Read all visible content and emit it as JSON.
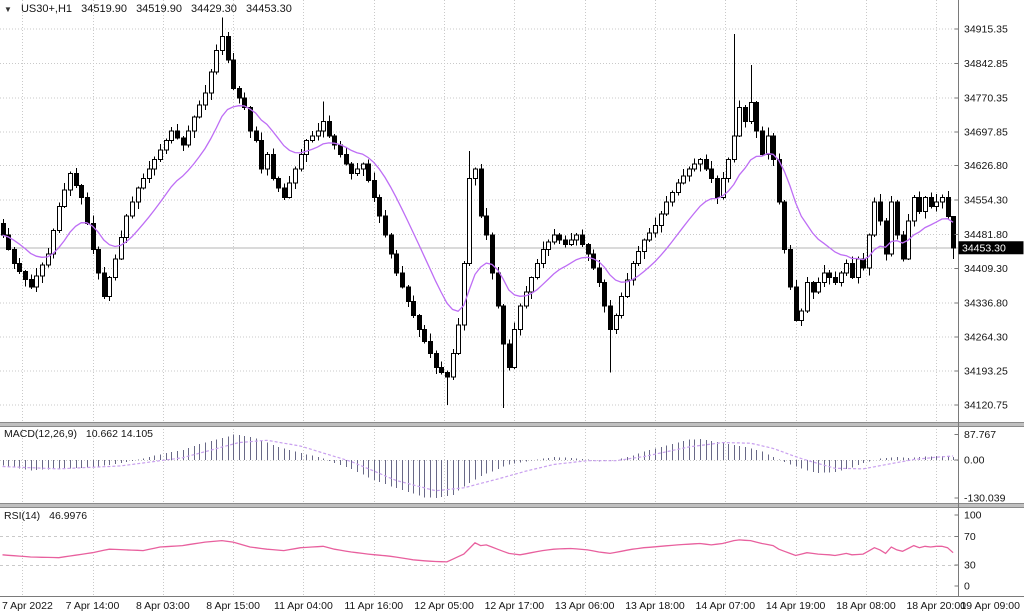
{
  "header": {
    "dropdown_icon": "▼",
    "symbol": "US30+,H1",
    "open": "34519.90",
    "high": "34519.90",
    "low": "34429.30",
    "close": "34453.30"
  },
  "price_axis": {
    "ticks": [
      "34915.35",
      "34842.85",
      "34770.35",
      "34697.85",
      "34626.80",
      "34554.30",
      "34481.80",
      "34409.30",
      "34336.80",
      "34264.30",
      "34193.25",
      "34120.75"
    ],
    "current": "34453.30"
  },
  "time_axis": {
    "labels": [
      "7 Apr 2022",
      "7 Apr 14:00",
      "8 Apr 03:00",
      "8 Apr 15:00",
      "11 Apr 04:00",
      "11 Apr 16:00",
      "12 Apr 05:00",
      "12 Apr 17:00",
      "13 Apr 06:00",
      "13 Apr 18:00",
      "14 Apr 07:00",
      "14 Apr 19:00",
      "18 Apr 08:00",
      "18 Apr 20:00",
      "19 Apr 09:00"
    ]
  },
  "macd_panel": {
    "label": "MACD(12,26,9)",
    "values": "10.662 14.105",
    "ticks": [
      "87.767",
      "0.00",
      "-130.039"
    ]
  },
  "rsi_panel": {
    "label": "RSI(14)",
    "value": "46.9976",
    "ticks": [
      "100",
      "70",
      "30",
      "0"
    ]
  },
  "colors": {
    "background": "#ffffff",
    "grid": "#c9c9c9",
    "axis_line": "#7a7a7a",
    "axis_text": "#141414",
    "candle_border": "#000000",
    "candle_up_fill": "#ffffff",
    "candle_down_fill": "#000000",
    "ma_line": "#be6ef5",
    "macd_histogram": "#696987",
    "macd_signal": "#c9a0ef",
    "rsi_line": "#e8609e",
    "current_price_line": "#b4b4b4",
    "current_price_bg": "#000000",
    "current_price_text": "#ffffff",
    "separator_fill": "#c0c0c0",
    "separator_edge": "#8a8a8a"
  },
  "chart_data": [
    {
      "type": "candlestick",
      "symbol": "US30+",
      "timeframe": "H1",
      "last_ohlc": {
        "open": 34519.9,
        "high": 34519.9,
        "low": 34429.3,
        "close": 34453.3
      },
      "current_price": 34453.3,
      "y_ticks": [
        34915.35,
        34842.85,
        34770.35,
        34697.85,
        34626.8,
        34554.3,
        34481.8,
        34409.3,
        34336.8,
        34264.3,
        34193.25,
        34120.75
      ],
      "ylim": [
        34085,
        34977
      ],
      "num_candles": 170,
      "grid": true,
      "x_tick_indices": [
        3.5,
        16,
        28.5,
        41,
        53.5,
        66,
        78.5,
        91,
        103.5,
        116,
        128.5,
        141,
        153.5,
        166,
        178.5
      ],
      "close_anchors": [
        [
          0,
          34480
        ],
        [
          2,
          34420
        ],
        [
          5,
          34370
        ],
        [
          8,
          34440
        ],
        [
          10,
          34540
        ],
        [
          12,
          34610
        ],
        [
          14,
          34560
        ],
        [
          16,
          34450
        ],
        [
          18,
          34350
        ],
        [
          20,
          34430
        ],
        [
          22,
          34520
        ],
        [
          24,
          34580
        ],
        [
          26,
          34620
        ],
        [
          28,
          34660
        ],
        [
          30,
          34700
        ],
        [
          32,
          34670
        ],
        [
          34,
          34730
        ],
        [
          36,
          34780
        ],
        [
          38,
          34870
        ],
        [
          39,
          34900
        ],
        [
          40,
          34850
        ],
        [
          41,
          34790
        ],
        [
          43,
          34750
        ],
        [
          44,
          34700
        ],
        [
          45,
          34680
        ],
        [
          46,
          34620
        ],
        [
          47,
          34650
        ],
        [
          48,
          34600
        ],
        [
          50,
          34560
        ],
        [
          52,
          34620
        ],
        [
          54,
          34680
        ],
        [
          56,
          34700
        ],
        [
          57,
          34720
        ],
        [
          58,
          34690
        ],
        [
          60,
          34650
        ],
        [
          62,
          34610
        ],
        [
          64,
          34630
        ],
        [
          66,
          34560
        ],
        [
          68,
          34480
        ],
        [
          70,
          34400
        ],
        [
          72,
          34340
        ],
        [
          74,
          34280
        ],
        [
          76,
          34230
        ],
        [
          77,
          34200
        ],
        [
          79,
          34180
        ],
        [
          80,
          34230
        ],
        [
          81,
          34290
        ],
        [
          82,
          34420
        ],
        [
          83,
          34600
        ],
        [
          84,
          34620
        ],
        [
          85,
          34520
        ],
        [
          86,
          34480
        ],
        [
          87,
          34400
        ],
        [
          88,
          34330
        ],
        [
          89,
          34250
        ],
        [
          90,
          34200
        ],
        [
          91,
          34280
        ],
        [
          92,
          34330
        ],
        [
          94,
          34390
        ],
        [
          96,
          34450
        ],
        [
          98,
          34480
        ],
        [
          100,
          34460
        ],
        [
          102,
          34480
        ],
        [
          104,
          34440
        ],
        [
          106,
          34380
        ],
        [
          107,
          34330
        ],
        [
          108,
          34280
        ],
        [
          109,
          34310
        ],
        [
          110,
          34350
        ],
        [
          112,
          34420
        ],
        [
          114,
          34470
        ],
        [
          116,
          34500
        ],
        [
          118,
          34550
        ],
        [
          120,
          34590
        ],
        [
          122,
          34620
        ],
        [
          124,
          34640
        ],
        [
          126,
          34600
        ],
        [
          127,
          34560
        ],
        [
          128,
          34600
        ],
        [
          129,
          34640
        ],
        [
          130,
          34690
        ],
        [
          131,
          34750
        ],
        [
          132,
          34720
        ],
        [
          133,
          34760
        ],
        [
          134,
          34700
        ],
        [
          135,
          34650
        ],
        [
          136,
          34690
        ],
        [
          137,
          34640
        ],
        [
          138,
          34550
        ],
        [
          139,
          34450
        ],
        [
          140,
          34370
        ],
        [
          141,
          34300
        ],
        [
          142,
          34320
        ],
        [
          143,
          34380
        ],
        [
          144,
          34360
        ],
        [
          146,
          34400
        ],
        [
          148,
          34380
        ],
        [
          150,
          34420
        ],
        [
          151,
          34390
        ],
        [
          152,
          34430
        ],
        [
          153,
          34410
        ],
        [
          154,
          34480
        ],
        [
          155,
          34550
        ],
        [
          156,
          34510
        ],
        [
          157,
          34440
        ],
        [
          158,
          34550
        ],
        [
          159,
          34480
        ],
        [
          160,
          34430
        ],
        [
          161,
          34510
        ],
        [
          162,
          34560
        ],
        [
          163,
          34530
        ],
        [
          164,
          34560
        ],
        [
          165,
          34540
        ],
        [
          166,
          34550
        ],
        [
          167,
          34560
        ],
        [
          168,
          34519.9
        ],
        [
          169,
          34453.3
        ]
      ],
      "wick_overrides": [
        {
          "i": 39,
          "high": 34940
        },
        {
          "i": 57,
          "high": 34762
        },
        {
          "i": 79,
          "low": 34121
        },
        {
          "i": 83,
          "high": 34658
        },
        {
          "i": 89,
          "low": 34115
        },
        {
          "i": 108,
          "low": 34190
        },
        {
          "i": 130,
          "high": 34905
        },
        {
          "i": 133,
          "high": 34840
        },
        {
          "i": 169,
          "high": 34519.9,
          "low": 34429.3
        }
      ],
      "overlays": [
        {
          "name": "MA",
          "type": "ema",
          "period": 15,
          "color": "#be6ef5"
        }
      ]
    },
    {
      "type": "macd",
      "label": "MACD(12,26,9)",
      "macd_value": 10.662,
      "signal_value": 14.105,
      "y_ticks": [
        87.767,
        0,
        -130.039
      ],
      "ylim": [
        -147,
        110
      ],
      "hist_anchors": [
        [
          0,
          -18
        ],
        [
          5,
          -35
        ],
        [
          10,
          -30
        ],
        [
          16,
          -25
        ],
        [
          21,
          -10
        ],
        [
          25,
          5
        ],
        [
          28,
          20
        ],
        [
          32,
          35
        ],
        [
          35,
          55
        ],
        [
          39,
          75
        ],
        [
          41,
          88
        ],
        [
          44,
          80
        ],
        [
          47,
          60
        ],
        [
          49,
          45
        ],
        [
          53,
          25
        ],
        [
          57,
          5
        ],
        [
          59,
          -10
        ],
        [
          62,
          -30
        ],
        [
          65,
          -60
        ],
        [
          69,
          -90
        ],
        [
          73,
          -115
        ],
        [
          75,
          -128
        ],
        [
          77,
          -130
        ],
        [
          80,
          -120
        ],
        [
          82,
          -90
        ],
        [
          85,
          -55
        ],
        [
          88,
          -30
        ],
        [
          90,
          -15
        ],
        [
          93,
          -5
        ],
        [
          96,
          5
        ],
        [
          98,
          10
        ],
        [
          101,
          8
        ],
        [
          104,
          2
        ],
        [
          106,
          -5
        ],
        [
          109,
          0
        ],
        [
          112,
          15
        ],
        [
          114,
          30
        ],
        [
          117,
          45
        ],
        [
          120,
          60
        ],
        [
          122,
          70
        ],
        [
          124,
          72
        ],
        [
          126,
          65
        ],
        [
          128,
          60
        ],
        [
          129,
          55
        ],
        [
          132,
          45
        ],
        [
          135,
          30
        ],
        [
          137,
          10
        ],
        [
          140,
          -15
        ],
        [
          143,
          -35
        ],
        [
          145,
          -45
        ],
        [
          148,
          -40
        ],
        [
          151,
          -25
        ],
        [
          153,
          -10
        ],
        [
          156,
          5
        ],
        [
          159,
          10
        ],
        [
          161,
          8
        ],
        [
          164,
          12
        ],
        [
          167,
          14
        ],
        [
          169,
          10.662
        ]
      ],
      "signal_anchors": [
        [
          0,
          -22
        ],
        [
          10,
          -30
        ],
        [
          21,
          -20
        ],
        [
          32,
          8
        ],
        [
          42,
          60
        ],
        [
          47,
          68
        ],
        [
          53,
          48
        ],
        [
          62,
          -5
        ],
        [
          70,
          -70
        ],
        [
          77,
          -105
        ],
        [
          82,
          -95
        ],
        [
          88,
          -65
        ],
        [
          93,
          -38
        ],
        [
          98,
          -15
        ],
        [
          104,
          -2
        ],
        [
          109,
          -2
        ],
        [
          114,
          12
        ],
        [
          122,
          45
        ],
        [
          128,
          60
        ],
        [
          133,
          58
        ],
        [
          137,
          40
        ],
        [
          142,
          5
        ],
        [
          148,
          -28
        ],
        [
          153,
          -30
        ],
        [
          158,
          -12
        ],
        [
          162,
          2
        ],
        [
          166,
          10
        ],
        [
          169,
          14.105
        ]
      ]
    },
    {
      "type": "rsi",
      "label": "RSI(14)",
      "value": 46.9976,
      "y_ticks": [
        100,
        70,
        30,
        0
      ],
      "levels": [
        70,
        30
      ],
      "ylim": [
        -14,
        110
      ],
      "anchors": [
        [
          0,
          44
        ],
        [
          5,
          41
        ],
        [
          10,
          40
        ],
        [
          16,
          47
        ],
        [
          19,
          52
        ],
        [
          25,
          50
        ],
        [
          28,
          55
        ],
        [
          32,
          57
        ],
        [
          36,
          62
        ],
        [
          39,
          64
        ],
        [
          41,
          62
        ],
        [
          44,
          55
        ],
        [
          47,
          52
        ],
        [
          50,
          50
        ],
        [
          53,
          54
        ],
        [
          57,
          56
        ],
        [
          59,
          52
        ],
        [
          62,
          48
        ],
        [
          65,
          45
        ],
        [
          69,
          42
        ],
        [
          73,
          37
        ],
        [
          76,
          35
        ],
        [
          79,
          34
        ],
        [
          82,
          45
        ],
        [
          84,
          61
        ],
        [
          85,
          57
        ],
        [
          86,
          58
        ],
        [
          88,
          52
        ],
        [
          90,
          46
        ],
        [
          92,
          44
        ],
        [
          96,
          50
        ],
        [
          98,
          52
        ],
        [
          101,
          53
        ],
        [
          104,
          51
        ],
        [
          106,
          48
        ],
        [
          108,
          46
        ],
        [
          110,
          49
        ],
        [
          112,
          52
        ],
        [
          114,
          54
        ],
        [
          117,
          56
        ],
        [
          120,
          58
        ],
        [
          122,
          59
        ],
        [
          124,
          60
        ],
        [
          126,
          58
        ],
        [
          128,
          60
        ],
        [
          130,
          64
        ],
        [
          131,
          65
        ],
        [
          133,
          64
        ],
        [
          135,
          60
        ],
        [
          137,
          57
        ],
        [
          138,
          52
        ],
        [
          140,
          46
        ],
        [
          141,
          43
        ],
        [
          143,
          47
        ],
        [
          145,
          45
        ],
        [
          147,
          44
        ],
        [
          148,
          43
        ],
        [
          150,
          46
        ],
        [
          151,
          44
        ],
        [
          153,
          45
        ],
        [
          155,
          54
        ],
        [
          156,
          51
        ],
        [
          157,
          46
        ],
        [
          158,
          55
        ],
        [
          159,
          51
        ],
        [
          160,
          49
        ],
        [
          161,
          53
        ],
        [
          162,
          57
        ],
        [
          163,
          54
        ],
        [
          164,
          56
        ],
        [
          165,
          55
        ],
        [
          166,
          56
        ],
        [
          167,
          56
        ],
        [
          168,
          54
        ],
        [
          169,
          47
        ]
      ]
    }
  ]
}
